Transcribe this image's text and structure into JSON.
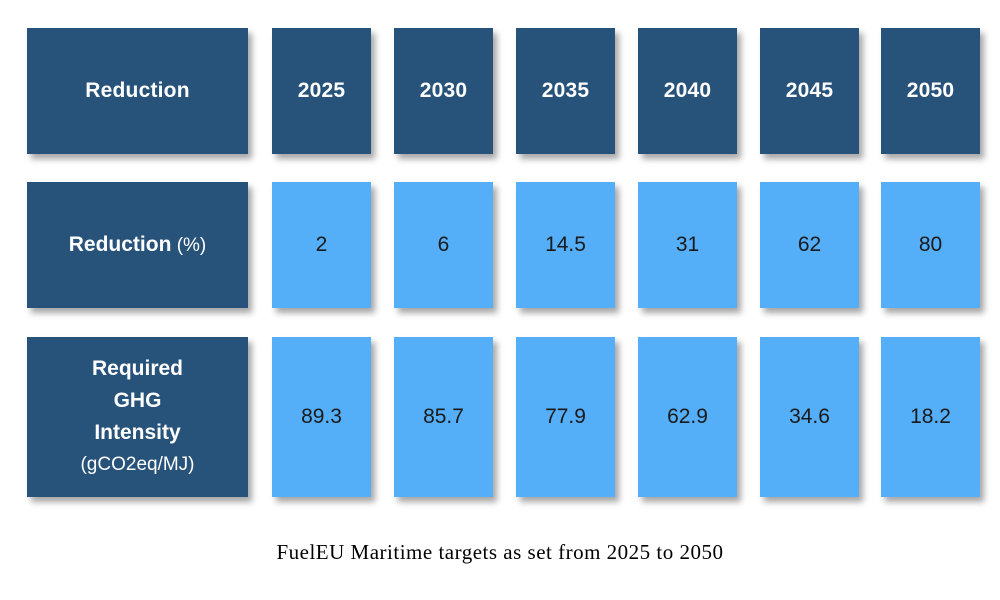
{
  "chart_data": {
    "type": "table",
    "columns": [
      "Reduction",
      "2025",
      "2030",
      "2035",
      "2040",
      "2045",
      "2050"
    ],
    "rows": [
      {
        "label_bold": "Reduction",
        "label_normal": " (%)",
        "values": [
          "2",
          "6",
          "14.5",
          "31",
          "62",
          "80"
        ]
      },
      {
        "label_bold": "Required GHG Intensity",
        "label_unit": "(gCO2eq/MJ)",
        "values": [
          "89.3",
          "85.7",
          "77.9",
          "62.9",
          "34.6",
          "18.2"
        ]
      }
    ],
    "caption": "FuelEU Maritime targets as set from 2025 to 2050",
    "colors": {
      "header": "#27527a",
      "value_cell": "#54aef8",
      "header_text": "#ffffff",
      "value_text": "#1a1a1a"
    }
  }
}
